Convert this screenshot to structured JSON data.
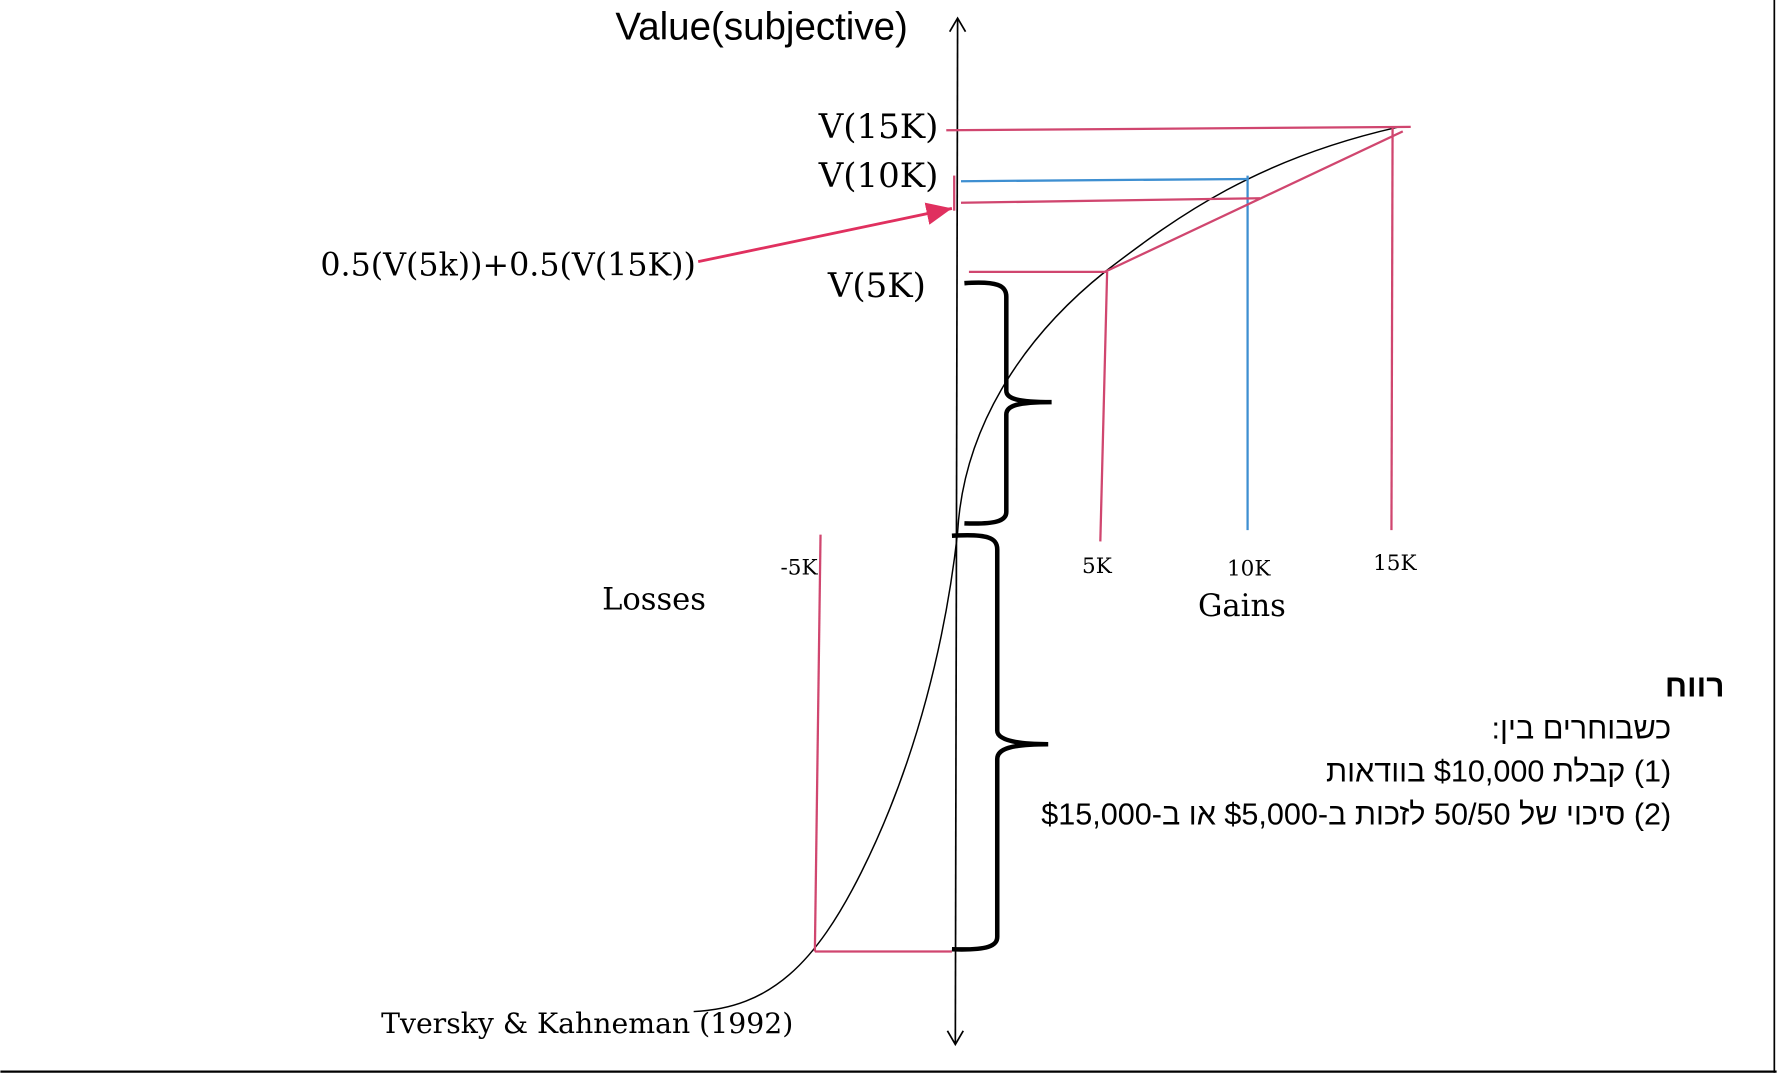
{
  "diagram": {
    "axis_title": "Value(subjective)",
    "y_labels": {
      "v15k": "V(15K)",
      "v10k": "V(10K)",
      "v5k": "V(5K)",
      "expected": "0.5(V(5k))+0.5(V(15K))"
    },
    "x_labels": {
      "neg5k": "-5K",
      "5k": "5K",
      "10k": "10K",
      "15k": "15K"
    },
    "losses_label": "Losses",
    "gains_label": "Gains",
    "citation": "Tversky & Kahneman (1992)",
    "colors": {
      "pink": "#d0466f",
      "blue": "#3e8fd1",
      "arrow": "#e0305f"
    }
  },
  "note": {
    "title": "רווח",
    "lines": [
      "כשבוחרים בין:",
      "(1) קבלת $10,000 בוודאות",
      "(2) סיכוי של 50/50 לזכות ב-$5,000 או ב-$15,000"
    ]
  }
}
